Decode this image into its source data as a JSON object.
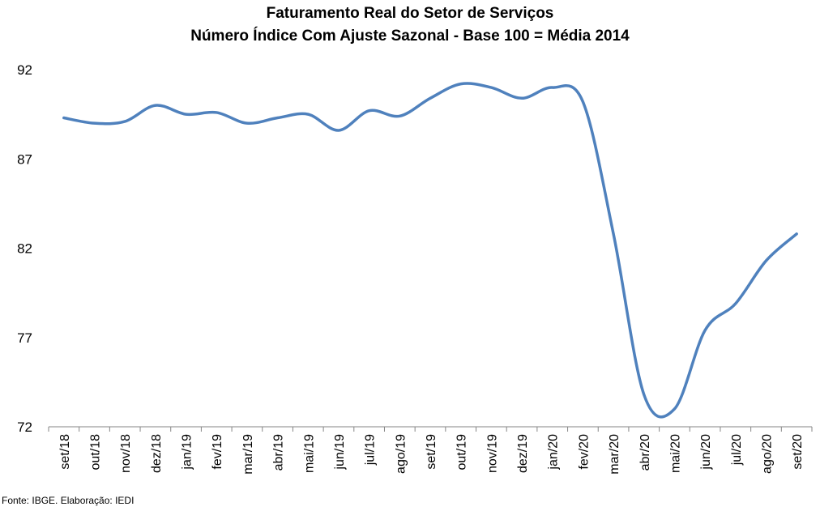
{
  "chart_data": {
    "type": "line",
    "title": "Faturamento Real do Setor de Serviços",
    "subtitle": "Número Índice Com Ajuste Sazonal - Base 100 = Média 2014",
    "categories": [
      "set/18",
      "out/18",
      "nov/18",
      "dez/18",
      "jan/19",
      "fev/19",
      "mar/19",
      "abr/19",
      "mai/19",
      "jun/19",
      "jul/19",
      "ago/19",
      "set/19",
      "out/19",
      "nov/19",
      "dez/19",
      "jan/20",
      "fev/20",
      "mar/20",
      "abr/20",
      "mai/20",
      "jun/20",
      "jul/20",
      "ago/20",
      "set/20"
    ],
    "series": [
      {
        "values": [
          89.3,
          89.0,
          89.1,
          90.0,
          89.5,
          89.6,
          89.0,
          89.3,
          89.5,
          88.6,
          89.7,
          89.4,
          90.4,
          91.2,
          91.0,
          90.4,
          91.0,
          90.2,
          82.8,
          73.8,
          73.0,
          77.4,
          78.9,
          81.3,
          82.8
        ]
      }
    ],
    "yticks": [
      72,
      77,
      82,
      87,
      92
    ],
    "ylim": [
      72,
      92
    ],
    "grid": false,
    "line_color": "#4f81bd",
    "source": "Fonte: IBGE. Elaboração: IEDI"
  }
}
